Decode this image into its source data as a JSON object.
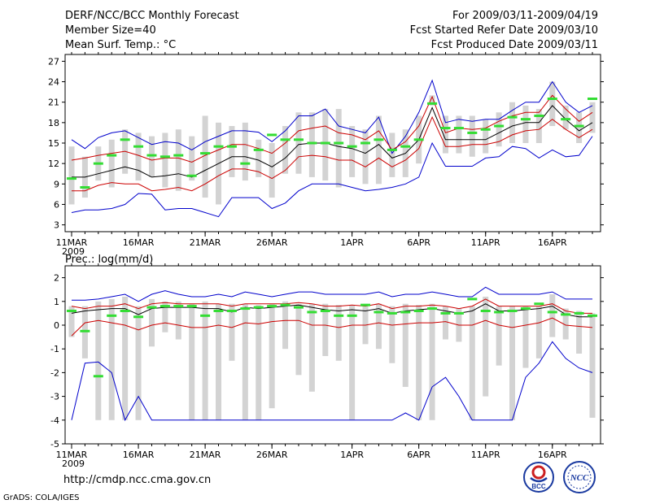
{
  "header": {
    "title": "DERF/NCC/BCC Monthly Forecast",
    "member_size": "Member Size=40",
    "variable": "Mean Surf. Temp.: °C",
    "period": "For 2009/03/11-2009/04/19",
    "started": "Fcst Started Refer Date 2009/03/10",
    "produced": "Fcst Produced Date 2009/03/11"
  },
  "footer": {
    "url": "http://cmdp.ncc.cma.gov.cn",
    "grads": "GrADS: COLA/IGES",
    "logo_bcc": "BCC",
    "logo_ncc": "NCC"
  },
  "colors": {
    "envelope": "#0000cc",
    "spread": "#cc0000",
    "mean": "#000000",
    "median": "#33dd33",
    "bar": "#d3d3d3"
  },
  "chart_data": [
    {
      "type": "line",
      "title": "Mean Surf. Temp.: °C",
      "ylim": [
        2,
        28
      ],
      "yticks": [
        3,
        6,
        9,
        12,
        15,
        18,
        21,
        24,
        27
      ],
      "xticks": [
        {
          "day": 0,
          "label": "11MAR",
          "sub": "2009"
        },
        {
          "day": 5,
          "label": "16MAR",
          "sub": ""
        },
        {
          "day": 10,
          "label": "21MAR",
          "sub": ""
        },
        {
          "day": 15,
          "label": "26MAR",
          "sub": ""
        },
        {
          "day": 21,
          "label": "1APR",
          "sub": ""
        },
        {
          "day": 26,
          "label": "6APR",
          "sub": ""
        },
        {
          "day": 31,
          "label": "11APR",
          "sub": ""
        },
        {
          "day": 36,
          "label": "16APR",
          "sub": ""
        }
      ],
      "n_days": 40,
      "series": [
        {
          "name": "max",
          "values": [
            15.5,
            14.2,
            15.8,
            16.5,
            16.8,
            15.8,
            14.8,
            15.2,
            15.0,
            14.0,
            15.2,
            16.0,
            16.8,
            16.8,
            16.6,
            15.2,
            16.8,
            19.0,
            19.0,
            20.0,
            17.5,
            17.0,
            16.5,
            18.8,
            13.5,
            16.0,
            19.5,
            24.2,
            18.0,
            18.5,
            18.2,
            18.5,
            18.5,
            19.8,
            21.0,
            21.0,
            24.0,
            21.0,
            19.5,
            20.5
          ]
        },
        {
          "name": "upper",
          "values": [
            12.5,
            12.8,
            13.2,
            13.5,
            13.8,
            13.2,
            12.5,
            12.8,
            12.8,
            12.2,
            13.2,
            14.0,
            14.8,
            14.8,
            14.2,
            13.5,
            15.0,
            16.8,
            17.2,
            17.5,
            16.5,
            16.2,
            15.5,
            16.8,
            14.0,
            15.2,
            17.5,
            21.8,
            16.5,
            17.2,
            17.0,
            17.2,
            18.2,
            19.0,
            19.5,
            19.5,
            22.0,
            20.0,
            18.2,
            19.5
          ]
        },
        {
          "name": "mean",
          "values": [
            10.0,
            10.0,
            10.5,
            11.0,
            11.5,
            11.0,
            10.0,
            10.2,
            10.5,
            10.0,
            11.0,
            12.0,
            13.0,
            13.0,
            12.5,
            11.5,
            12.8,
            14.8,
            15.0,
            15.0,
            14.5,
            14.2,
            13.5,
            14.8,
            12.8,
            13.5,
            15.5,
            20.2,
            15.5,
            15.5,
            15.5,
            15.5,
            16.5,
            17.5,
            18.0,
            18.0,
            20.5,
            18.5,
            16.8,
            18.0
          ]
        },
        {
          "name": "lower",
          "values": [
            8.0,
            8.0,
            8.8,
            9.2,
            9.0,
            9.0,
            8.0,
            8.2,
            8.5,
            8.0,
            9.0,
            10.2,
            11.2,
            11.2,
            10.8,
            9.8,
            11.0,
            13.0,
            13.2,
            13.0,
            12.5,
            12.5,
            11.5,
            12.8,
            11.5,
            12.5,
            14.2,
            18.8,
            14.5,
            14.5,
            14.8,
            14.8,
            15.2,
            16.2,
            16.8,
            17.0,
            18.5,
            17.0,
            15.8,
            17.0
          ]
        },
        {
          "name": "min",
          "values": [
            4.8,
            5.2,
            5.2,
            5.4,
            6.0,
            7.6,
            7.5,
            5.2,
            5.4,
            5.4,
            4.8,
            4.2,
            7.0,
            7.0,
            7.0,
            5.4,
            6.2,
            8.0,
            9.0,
            9.0,
            9.0,
            8.5,
            8.0,
            8.2,
            8.5,
            9.0,
            10.0,
            15.0,
            11.6,
            11.6,
            11.6,
            12.8,
            13.0,
            14.5,
            14.2,
            12.8,
            14.0,
            13.0,
            13.2,
            16.0
          ]
        }
      ],
      "bars_low": [
        6.0,
        7.0,
        9.5,
        8.5,
        10.5,
        9.5,
        10.0,
        8.5,
        8.0,
        9.5,
        7.0,
        6.0,
        10.0,
        9.5,
        10.0,
        7.0,
        10.5,
        10.5,
        10.0,
        9.5,
        8.5,
        10.0,
        9.0,
        9.0,
        10.0,
        10.0,
        12.0,
        20.5,
        13.5,
        13.5,
        13.0,
        13.5,
        14.5,
        15.0,
        15.0,
        15.0,
        17.5,
        17.0,
        15.0,
        16.5
      ],
      "bars_high": [
        14.5,
        13.0,
        14.5,
        15.5,
        17.0,
        16.5,
        16.0,
        16.5,
        17.0,
        16.0,
        19.0,
        18.0,
        17.5,
        18.0,
        15.5,
        15.0,
        17.5,
        19.5,
        19.5,
        20.0,
        20.0,
        17.5,
        17.0,
        19.0,
        16.5,
        17.0,
        19.0,
        22.0,
        19.0,
        19.0,
        19.0,
        18.5,
        19.5,
        21.0,
        20.5,
        20.0,
        24.0,
        20.5,
        19.5,
        21.0
      ],
      "medians": [
        9.8,
        8.5,
        12.0,
        13.2,
        15.5,
        14.5,
        13.2,
        13.0,
        13.2,
        10.2,
        13.5,
        14.5,
        14.5,
        12.0,
        14.0,
        16.2,
        15.5,
        15.5,
        15.0,
        15.0,
        15.0,
        14.5,
        15.0,
        15.5,
        14.0,
        14.5,
        15.5,
        20.8,
        17.2,
        17.2,
        16.5,
        17.0,
        17.5,
        18.8,
        18.5,
        19.0,
        21.5,
        18.5,
        17.5,
        21.5
      ]
    },
    {
      "type": "line",
      "title": "Prec.: log(mm/d)",
      "ylim": [
        -5,
        2.5
      ],
      "yticks": [
        -5,
        -4,
        -3,
        -2,
        -1,
        0,
        1,
        2
      ],
      "xticks": [
        {
          "day": 0,
          "label": "11MAR",
          "sub": "2009"
        },
        {
          "day": 5,
          "label": "16MAR",
          "sub": ""
        },
        {
          "day": 10,
          "label": "21MAR",
          "sub": ""
        },
        {
          "day": 15,
          "label": "26MAR",
          "sub": ""
        },
        {
          "day": 21,
          "label": "1APR",
          "sub": ""
        },
        {
          "day": 26,
          "label": "6APR",
          "sub": ""
        },
        {
          "day": 31,
          "label": "11APR",
          "sub": ""
        },
        {
          "day": 36,
          "label": "16APR",
          "sub": ""
        }
      ],
      "n_days": 40,
      "series": [
        {
          "name": "max",
          "values": [
            1.05,
            1.05,
            1.1,
            1.2,
            1.3,
            1.0,
            1.3,
            1.45,
            1.3,
            1.2,
            1.2,
            1.3,
            1.2,
            1.4,
            1.3,
            1.2,
            1.3,
            1.4,
            1.4,
            1.3,
            1.3,
            1.3,
            1.3,
            1.4,
            1.2,
            1.3,
            1.3,
            1.4,
            1.3,
            1.2,
            1.2,
            1.6,
            1.3,
            1.3,
            1.3,
            1.3,
            1.4,
            1.1,
            1.1,
            1.1
          ]
        },
        {
          "name": "upper",
          "values": [
            0.8,
            0.7,
            0.8,
            0.8,
            0.9,
            0.7,
            0.9,
            0.95,
            0.9,
            0.9,
            0.9,
            0.9,
            0.8,
            0.9,
            0.9,
            0.9,
            0.9,
            0.95,
            0.9,
            0.8,
            0.8,
            0.85,
            0.8,
            0.9,
            0.7,
            0.8,
            0.8,
            0.85,
            0.8,
            0.7,
            0.8,
            1.1,
            0.8,
            0.8,
            0.8,
            0.8,
            0.9,
            0.6,
            0.5,
            0.5
          ]
        },
        {
          "name": "mean",
          "values": [
            0.5,
            0.6,
            0.65,
            0.7,
            0.7,
            0.45,
            0.7,
            0.75,
            0.75,
            0.75,
            0.7,
            0.7,
            0.55,
            0.75,
            0.7,
            0.75,
            0.8,
            0.85,
            0.75,
            0.65,
            0.6,
            0.65,
            0.6,
            0.7,
            0.5,
            0.6,
            0.65,
            0.7,
            0.6,
            0.5,
            0.6,
            0.9,
            0.6,
            0.6,
            0.65,
            0.7,
            0.8,
            0.45,
            0.35,
            0.35
          ]
        },
        {
          "name": "lower",
          "values": [
            -0.45,
            0.1,
            0.2,
            0.1,
            0.0,
            -0.2,
            0.0,
            0.1,
            0.0,
            -0.1,
            -0.1,
            0.0,
            -0.1,
            0.1,
            0.05,
            0.15,
            0.2,
            0.2,
            0.0,
            0.0,
            -0.1,
            0.0,
            0.0,
            0.1,
            0.0,
            0.05,
            0.1,
            0.1,
            0.15,
            0.0,
            0.0,
            0.2,
            0.0,
            -0.1,
            0.0,
            0.1,
            0.3,
            0.0,
            -0.05,
            -0.1
          ]
        },
        {
          "name": "min",
          "values": [
            -4.0,
            -1.6,
            -1.55,
            -2.0,
            -4.0,
            -3.0,
            -4.0,
            -4.0,
            -4.0,
            -4.0,
            -4.0,
            -4.0,
            -4.0,
            -4.0,
            -4.0,
            -4.0,
            -4.0,
            -4.0,
            -4.0,
            -4.0,
            -4.0,
            -4.0,
            -4.0,
            -4.0,
            -4.0,
            -3.7,
            -4.0,
            -2.6,
            -2.2,
            -3.0,
            -4.0,
            -4.0,
            -4.0,
            -4.0,
            -2.2,
            -1.6,
            -0.7,
            -1.4,
            -1.8,
            -2.0
          ]
        }
      ],
      "bars_low": [
        -0.5,
        -1.4,
        -4.0,
        -4.0,
        -4.0,
        -4.0,
        -0.9,
        -0.3,
        -0.6,
        -4.0,
        -4.0,
        -4.0,
        -1.5,
        -4.0,
        -4.0,
        -3.5,
        -1.0,
        -2.1,
        -2.8,
        -1.3,
        -1.5,
        -4.0,
        -0.8,
        -1.0,
        -1.6,
        -2.6,
        -4.0,
        -4.0,
        -0.6,
        -0.7,
        -4.0,
        -3.0,
        -1.7,
        -4.0,
        -1.8,
        -1.4,
        -0.5,
        -0.6,
        -1.2,
        -3.9
      ],
      "bars_high": [
        0.8,
        0.8,
        1.0,
        1.1,
        1.2,
        0.8,
        1.1,
        1.0,
        1.0,
        0.9,
        1.0,
        0.9,
        0.9,
        0.9,
        0.85,
        0.9,
        1.0,
        0.9,
        0.9,
        0.9,
        0.85,
        0.85,
        0.9,
        0.9,
        0.8,
        0.9,
        0.85,
        0.9,
        0.8,
        0.7,
        0.8,
        1.2,
        0.8,
        0.8,
        0.8,
        0.8,
        1.3,
        0.7,
        0.6,
        0.5
      ],
      "medians": [
        0.6,
        -0.25,
        -2.15,
        0.4,
        0.6,
        0.35,
        0.75,
        0.8,
        0.8,
        0.8,
        0.4,
        0.6,
        0.6,
        0.7,
        0.75,
        0.8,
        0.85,
        0.75,
        0.55,
        0.6,
        0.4,
        0.4,
        0.85,
        0.55,
        0.5,
        0.55,
        0.6,
        0.7,
        0.5,
        0.5,
        1.1,
        0.6,
        0.55,
        0.6,
        0.7,
        0.9,
        0.55,
        0.45,
        0.5,
        0.4
      ]
    }
  ]
}
